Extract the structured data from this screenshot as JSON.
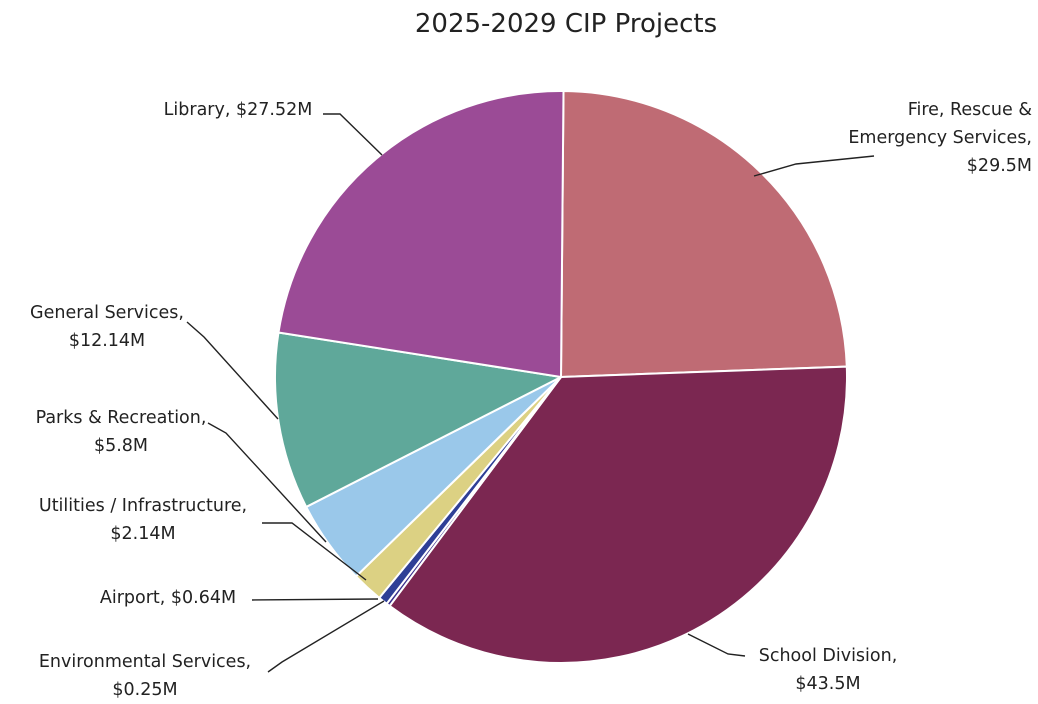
{
  "chart_data": {
    "type": "pie",
    "title": "2025-2029 CIP Projects",
    "start_angle_deg": 0.5,
    "direction": "clockwise",
    "slices": [
      {
        "name": "Fire, Rescue & Emergency Services",
        "value": 29.5,
        "value_label": "$29.5M",
        "color": "#bf6b74",
        "label_lines": [
          "Fire, Rescue &",
          "Emergency Services,",
          "$29.5M"
        ]
      },
      {
        "name": "School Division",
        "value": 43.5,
        "value_label": "$43.5M",
        "color": "#7b2751",
        "label_lines": [
          "School Division,",
          "$43.5M"
        ]
      },
      {
        "name": "Environmental Services",
        "value": 0.25,
        "value_label": "$0.25M",
        "color": "#3a2f8c",
        "label_lines": [
          "Environmental Services,",
          "$0.25M"
        ]
      },
      {
        "name": "Airport",
        "value": 0.64,
        "value_label": "$0.64M",
        "color": "#2e3f96",
        "label_lines": [
          "Airport, $0.64M"
        ]
      },
      {
        "name": "Utilities / Infrastructure",
        "value": 2.14,
        "value_label": "$2.14M",
        "color": "#dcd183",
        "label_lines": [
          "Utilities / Infrastructure,",
          "$2.14M"
        ]
      },
      {
        "name": "Parks & Recreation",
        "value": 5.8,
        "value_label": "$5.8M",
        "color": "#9ac8ea",
        "label_lines": [
          "Parks & Recreation,",
          "$5.8M"
        ]
      },
      {
        "name": "General Services",
        "value": 12.14,
        "value_label": "$12.14M",
        "color": "#5fa89a",
        "label_lines": [
          "General Services,",
          "$12.14M"
        ]
      },
      {
        "name": "Library",
        "value": 27.52,
        "value_label": "$27.52M",
        "color": "#9b4b96",
        "label_lines": [
          "Library, $27.52M"
        ]
      }
    ]
  }
}
